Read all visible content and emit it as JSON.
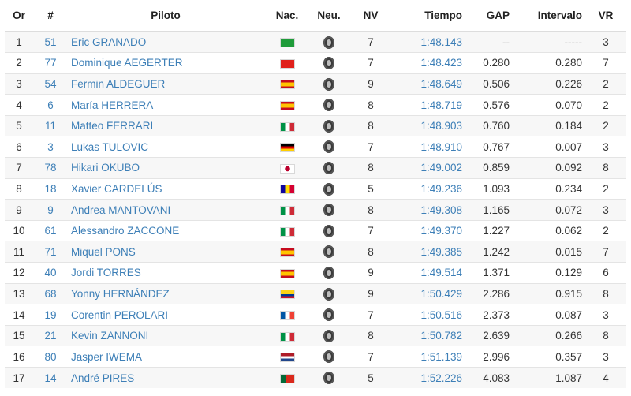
{
  "headers": {
    "or": "Or",
    "num": "#",
    "piloto": "Piloto",
    "nac": "Nac.",
    "neu": "Neu.",
    "nv": "NV",
    "tiempo": "Tiempo",
    "gap": "GAP",
    "intervalo": "Intervalo",
    "vr": "VR"
  },
  "tyre_icon": "tyre-icon",
  "rows": [
    {
      "or": "1",
      "num": "51",
      "piloto": "Eric GRANADO",
      "flag": "brazil",
      "nv": "7",
      "tiempo": "1:48.143",
      "gap": "--",
      "intervalo": "-----",
      "vr": "3"
    },
    {
      "or": "2",
      "num": "77",
      "piloto": "Dominique AEGERTER",
      "flag": "switzerland",
      "nv": "7",
      "tiempo": "1:48.423",
      "gap": "0.280",
      "intervalo": "0.280",
      "vr": "7"
    },
    {
      "or": "3",
      "num": "54",
      "piloto": "Fermin ALDEGUER",
      "flag": "spain",
      "nv": "9",
      "tiempo": "1:48.649",
      "gap": "0.506",
      "intervalo": "0.226",
      "vr": "2"
    },
    {
      "or": "4",
      "num": "6",
      "piloto": "María HERRERA",
      "flag": "spain",
      "nv": "8",
      "tiempo": "1:48.719",
      "gap": "0.576",
      "intervalo": "0.070",
      "vr": "2"
    },
    {
      "or": "5",
      "num": "11",
      "piloto": "Matteo FERRARI",
      "flag": "italy",
      "nv": "8",
      "tiempo": "1:48.903",
      "gap": "0.760",
      "intervalo": "0.184",
      "vr": "2"
    },
    {
      "or": "6",
      "num": "3",
      "piloto": "Lukas TULOVIC",
      "flag": "germany",
      "nv": "7",
      "tiempo": "1:48.910",
      "gap": "0.767",
      "intervalo": "0.007",
      "vr": "3"
    },
    {
      "or": "7",
      "num": "78",
      "piloto": "Hikari OKUBO",
      "flag": "japan",
      "nv": "8",
      "tiempo": "1:49.002",
      "gap": "0.859",
      "intervalo": "0.092",
      "vr": "8"
    },
    {
      "or": "8",
      "num": "18",
      "piloto": "Xavier CARDELÚS",
      "flag": "andorra",
      "nv": "5",
      "tiempo": "1:49.236",
      "gap": "1.093",
      "intervalo": "0.234",
      "vr": "2"
    },
    {
      "or": "9",
      "num": "9",
      "piloto": "Andrea MANTOVANI",
      "flag": "italy",
      "nv": "8",
      "tiempo": "1:49.308",
      "gap": "1.165",
      "intervalo": "0.072",
      "vr": "3"
    },
    {
      "or": "10",
      "num": "61",
      "piloto": "Alessandro ZACCONE",
      "flag": "italy",
      "nv": "7",
      "tiempo": "1:49.370",
      "gap": "1.227",
      "intervalo": "0.062",
      "vr": "2"
    },
    {
      "or": "11",
      "num": "71",
      "piloto": "Miquel PONS",
      "flag": "spain",
      "nv": "8",
      "tiempo": "1:49.385",
      "gap": "1.242",
      "intervalo": "0.015",
      "vr": "7"
    },
    {
      "or": "12",
      "num": "40",
      "piloto": "Jordi TORRES",
      "flag": "spain",
      "nv": "9",
      "tiempo": "1:49.514",
      "gap": "1.371",
      "intervalo": "0.129",
      "vr": "6"
    },
    {
      "or": "13",
      "num": "68",
      "piloto": "Yonny HERNÁNDEZ",
      "flag": "colombia",
      "nv": "9",
      "tiempo": "1:50.429",
      "gap": "2.286",
      "intervalo": "0.915",
      "vr": "8"
    },
    {
      "or": "14",
      "num": "19",
      "piloto": "Corentin PEROLARI",
      "flag": "france",
      "nv": "7",
      "tiempo": "1:50.516",
      "gap": "2.373",
      "intervalo": "0.087",
      "vr": "3"
    },
    {
      "or": "15",
      "num": "21",
      "piloto": "Kevin ZANNONI",
      "flag": "italy",
      "nv": "8",
      "tiempo": "1:50.782",
      "gap": "2.639",
      "intervalo": "0.266",
      "vr": "8"
    },
    {
      "or": "16",
      "num": "80",
      "piloto": "Jasper IWEMA",
      "flag": "netherlands",
      "nv": "7",
      "tiempo": "1:51.139",
      "gap": "2.996",
      "intervalo": "0.357",
      "vr": "3"
    },
    {
      "or": "17",
      "num": "14",
      "piloto": "André PIRES",
      "flag": "portugal",
      "nv": "5",
      "tiempo": "1:52.226",
      "gap": "4.083",
      "intervalo": "1.087",
      "vr": "4"
    }
  ]
}
